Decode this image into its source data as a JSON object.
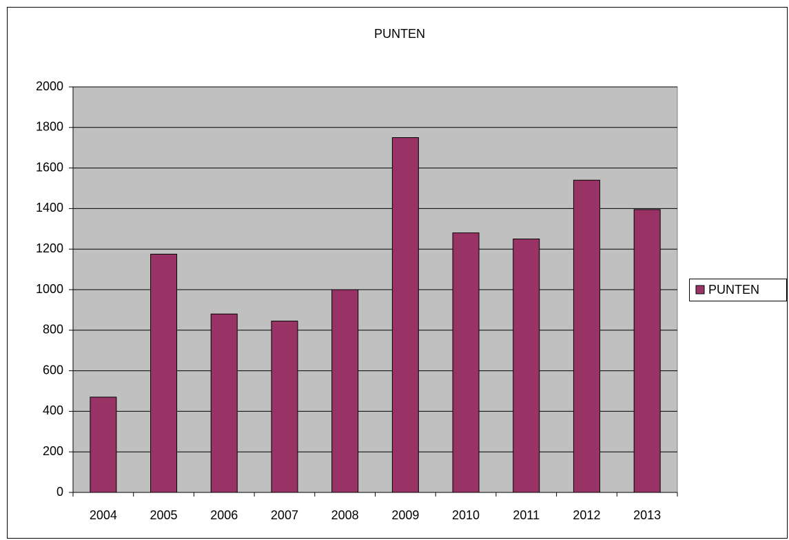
{
  "chart_data": {
    "type": "bar",
    "title": "PUNTEN",
    "categories": [
      "2004",
      "2005",
      "2006",
      "2007",
      "2008",
      "2009",
      "2010",
      "2011",
      "2012",
      "2013"
    ],
    "series": [
      {
        "name": "PUNTEN",
        "color": "#993366",
        "values": [
          470,
          1175,
          880,
          845,
          1000,
          1750,
          1280,
          1250,
          1540,
          1395
        ]
      }
    ],
    "ylim": [
      0,
      2000
    ],
    "yticks": [
      0,
      200,
      400,
      600,
      800,
      1000,
      1200,
      1400,
      1600,
      1800,
      2000
    ],
    "grid": true,
    "legend": "right",
    "plot_background": "#c0c0c0"
  }
}
